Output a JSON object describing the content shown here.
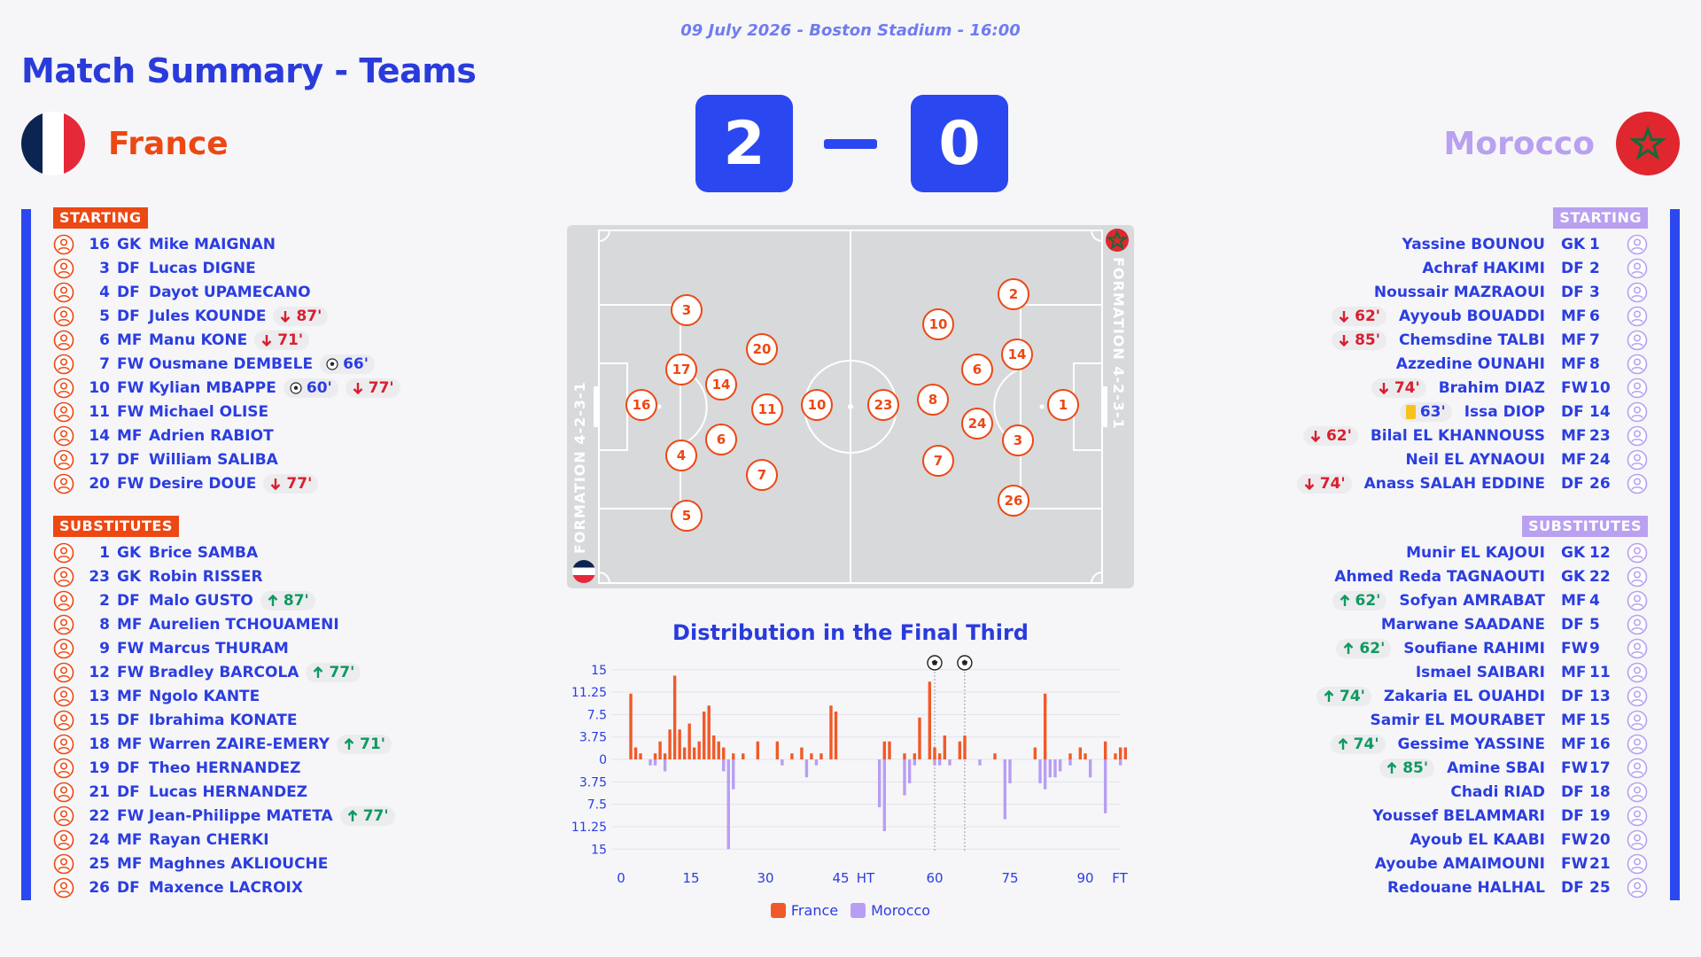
{
  "header": {
    "info": "09 July 2026 - Boston Stadium - 16:00",
    "title": "Match Summary - Teams"
  },
  "teams": {
    "home": {
      "name": "France",
      "score": "2",
      "formation": "FORMATION 4-2-3-1",
      "color": "#ec4814"
    },
    "away": {
      "name": "Morocco",
      "score": "0",
      "formation": "FORMATION 4-2-3-1",
      "color": "#b9a0f0"
    }
  },
  "labels": {
    "starting": "STARTING",
    "substitutes": "SUBSTITUTES"
  },
  "home_starting": [
    {
      "num": "16",
      "pos": "GK",
      "name": "Mike MAIGNAN",
      "events": []
    },
    {
      "num": "3",
      "pos": "DF",
      "name": "Lucas DIGNE",
      "events": []
    },
    {
      "num": "4",
      "pos": "DF",
      "name": "Dayot UPAMECANO",
      "events": []
    },
    {
      "num": "5",
      "pos": "DF",
      "name": "Jules KOUNDE",
      "events": [
        {
          "type": "out",
          "text": "87'"
        }
      ]
    },
    {
      "num": "6",
      "pos": "MF",
      "name": "Manu KONE",
      "events": [
        {
          "type": "out",
          "text": "71'"
        }
      ]
    },
    {
      "num": "7",
      "pos": "FW",
      "name": "Ousmane DEMBELE",
      "events": [
        {
          "type": "goal",
          "text": "66'"
        }
      ]
    },
    {
      "num": "10",
      "pos": "FW",
      "name": "Kylian MBAPPE",
      "events": [
        {
          "type": "goal",
          "text": "60'"
        },
        {
          "type": "out",
          "text": "77'"
        }
      ]
    },
    {
      "num": "11",
      "pos": "FW",
      "name": "Michael OLISE",
      "events": []
    },
    {
      "num": "14",
      "pos": "MF",
      "name": "Adrien RABIOT",
      "events": []
    },
    {
      "num": "17",
      "pos": "DF",
      "name": "William SALIBA",
      "events": []
    },
    {
      "num": "20",
      "pos": "FW",
      "name": "Desire DOUE",
      "events": [
        {
          "type": "out",
          "text": "77'"
        }
      ]
    }
  ],
  "home_subs": [
    {
      "num": "1",
      "pos": "GK",
      "name": "Brice SAMBA",
      "events": []
    },
    {
      "num": "23",
      "pos": "GK",
      "name": "Robin RISSER",
      "events": []
    },
    {
      "num": "2",
      "pos": "DF",
      "name": "Malo GUSTO",
      "events": [
        {
          "type": "in",
          "text": "87'"
        }
      ]
    },
    {
      "num": "8",
      "pos": "MF",
      "name": "Aurelien TCHOUAMENI",
      "events": []
    },
    {
      "num": "9",
      "pos": "FW",
      "name": "Marcus THURAM",
      "events": []
    },
    {
      "num": "12",
      "pos": "FW",
      "name": "Bradley BARCOLA",
      "events": [
        {
          "type": "in",
          "text": "77'"
        }
      ]
    },
    {
      "num": "13",
      "pos": "MF",
      "name": "Ngolo KANTE",
      "events": []
    },
    {
      "num": "15",
      "pos": "DF",
      "name": "Ibrahima KONATE",
      "events": []
    },
    {
      "num": "18",
      "pos": "MF",
      "name": "Warren ZAIRE-EMERY",
      "events": [
        {
          "type": "in",
          "text": "71'"
        }
      ]
    },
    {
      "num": "19",
      "pos": "DF",
      "name": "Theo HERNANDEZ",
      "events": []
    },
    {
      "num": "21",
      "pos": "DF",
      "name": "Lucas HERNANDEZ",
      "events": []
    },
    {
      "num": "22",
      "pos": "FW",
      "name": "Jean-Philippe MATETA",
      "events": [
        {
          "type": "in",
          "text": "77'"
        }
      ]
    },
    {
      "num": "24",
      "pos": "MF",
      "name": "Rayan CHERKI",
      "events": []
    },
    {
      "num": "25",
      "pos": "MF",
      "name": "Maghnes AKLIOUCHE",
      "events": []
    },
    {
      "num": "26",
      "pos": "DF",
      "name": "Maxence LACROIX",
      "events": []
    }
  ],
  "away_starting": [
    {
      "num": "1",
      "pos": "GK",
      "name": "Yassine BOUNOU",
      "events": []
    },
    {
      "num": "2",
      "pos": "DF",
      "name": "Achraf HAKIMI",
      "events": []
    },
    {
      "num": "3",
      "pos": "DF",
      "name": "Noussair MAZRAOUI",
      "events": []
    },
    {
      "num": "6",
      "pos": "MF",
      "name": "Ayyoub BOUADDI",
      "events": [
        {
          "type": "out",
          "text": "62'"
        }
      ]
    },
    {
      "num": "7",
      "pos": "MF",
      "name": "Chemsdine TALBI",
      "events": [
        {
          "type": "out",
          "text": "85'"
        }
      ]
    },
    {
      "num": "8",
      "pos": "MF",
      "name": "Azzedine OUNAHI",
      "events": []
    },
    {
      "num": "10",
      "pos": "FW",
      "name": "Brahim DIAZ",
      "events": [
        {
          "type": "out",
          "text": "74'"
        }
      ]
    },
    {
      "num": "14",
      "pos": "DF",
      "name": "Issa DIOP",
      "events": [
        {
          "type": "card",
          "text": "63'"
        }
      ]
    },
    {
      "num": "23",
      "pos": "MF",
      "name": "Bilal EL KHANNOUSS",
      "events": [
        {
          "type": "out",
          "text": "62'"
        }
      ]
    },
    {
      "num": "24",
      "pos": "MF",
      "name": "Neil EL AYNAOUI",
      "events": []
    },
    {
      "num": "26",
      "pos": "DF",
      "name": "Anass SALAH EDDINE",
      "events": [
        {
          "type": "out",
          "text": "74'"
        }
      ]
    }
  ],
  "away_subs": [
    {
      "num": "12",
      "pos": "GK",
      "name": "Munir EL KAJOUI",
      "events": []
    },
    {
      "num": "22",
      "pos": "GK",
      "name": "Ahmed Reda TAGNAOUTI",
      "events": []
    },
    {
      "num": "4",
      "pos": "MF",
      "name": "Sofyan AMRABAT",
      "events": [
        {
          "type": "in",
          "text": "62'"
        }
      ]
    },
    {
      "num": "5",
      "pos": "DF",
      "name": "Marwane SAADANE",
      "events": []
    },
    {
      "num": "9",
      "pos": "FW",
      "name": "Soufiane RAHIMI",
      "events": [
        {
          "type": "in",
          "text": "62'"
        }
      ]
    },
    {
      "num": "11",
      "pos": "MF",
      "name": "Ismael SAIBARI",
      "events": []
    },
    {
      "num": "13",
      "pos": "DF",
      "name": "Zakaria EL OUAHDI",
      "events": [
        {
          "type": "in",
          "text": "74'"
        }
      ]
    },
    {
      "num": "15",
      "pos": "MF",
      "name": "Samir EL MOURABET",
      "events": []
    },
    {
      "num": "16",
      "pos": "MF",
      "name": "Gessime YASSINE",
      "events": [
        {
          "type": "in",
          "text": "74'"
        }
      ]
    },
    {
      "num": "17",
      "pos": "FW",
      "name": "Amine SBAI",
      "events": [
        {
          "type": "in",
          "text": "85'"
        }
      ]
    },
    {
      "num": "18",
      "pos": "DF",
      "name": "Chadi RIAD",
      "events": []
    },
    {
      "num": "19",
      "pos": "DF",
      "name": "Youssef BELAMMARI",
      "events": []
    },
    {
      "num": "20",
      "pos": "FW",
      "name": "Ayoub EL KAABI",
      "events": []
    },
    {
      "num": "21",
      "pos": "FW",
      "name": "Ayoube AMAIMOUNI",
      "events": []
    },
    {
      "num": "25",
      "pos": "DF",
      "name": "Redouane HALHAL",
      "events": []
    }
  ],
  "pitch_home_numbers": [
    "16",
    "3",
    "17",
    "4",
    "5",
    "20",
    "14",
    "6",
    "11",
    "7",
    "10"
  ],
  "pitch_away_numbers": [
    "23",
    "10",
    "8",
    "7",
    "6",
    "24",
    "2",
    "14",
    "3",
    "26",
    "1"
  ],
  "chart_data": {
    "type": "bar",
    "title": "Distribution in the Final Third",
    "x_tick_labels": [
      "0",
      "15",
      "30",
      "45",
      "HT",
      "60",
      "75",
      "90",
      "FT"
    ],
    "y_tick_labels": [
      "15",
      "11.25",
      "7.5",
      "3.75",
      "0",
      "3.75",
      "7.5",
      "11.25",
      "15"
    ],
    "ylim": [
      -15,
      15
    ],
    "goal_minutes": [
      60,
      66
    ],
    "legend": [
      "France",
      "Morocco"
    ],
    "colors": {
      "France": "#f05a28",
      "Morocco": "#b89ef2"
    },
    "series": [
      {
        "name": "France",
        "values": [
          {
            "minute": 2,
            "value": 11
          },
          {
            "minute": 3,
            "value": 2
          },
          {
            "minute": 4,
            "value": 1
          },
          {
            "minute": 7,
            "value": 1
          },
          {
            "minute": 8,
            "value": 3
          },
          {
            "minute": 9,
            "value": 1
          },
          {
            "minute": 10,
            "value": 5
          },
          {
            "minute": 11,
            "value": 14
          },
          {
            "minute": 12,
            "value": 5
          },
          {
            "minute": 13,
            "value": 2
          },
          {
            "minute": 14,
            "value": 6
          },
          {
            "minute": 15,
            "value": 2
          },
          {
            "minute": 16,
            "value": 3
          },
          {
            "minute": 17,
            "value": 8
          },
          {
            "minute": 18,
            "value": 9
          },
          {
            "minute": 19,
            "value": 4
          },
          {
            "minute": 20,
            "value": 3
          },
          {
            "minute": 21,
            "value": 2
          },
          {
            "minute": 23,
            "value": 1
          },
          {
            "minute": 25,
            "value": 1
          },
          {
            "minute": 28,
            "value": 3
          },
          {
            "minute": 32,
            "value": 3
          },
          {
            "minute": 35,
            "value": 1
          },
          {
            "minute": 37,
            "value": 2
          },
          {
            "minute": 39,
            "value": 1
          },
          {
            "minute": 41,
            "value": 1
          },
          {
            "minute": 43,
            "value": 9
          },
          {
            "minute": 44,
            "value": 8
          },
          {
            "minute": 47,
            "value": 2
          },
          {
            "minute": 50,
            "value": 3
          },
          {
            "minute": 51,
            "value": 3
          },
          {
            "minute": 54,
            "value": 1
          },
          {
            "minute": 56,
            "value": 1
          },
          {
            "minute": 57,
            "value": 7
          },
          {
            "minute": 59,
            "value": 13
          },
          {
            "minute": 60,
            "value": 2
          },
          {
            "minute": 61,
            "value": 1
          },
          {
            "minute": 62,
            "value": 4
          },
          {
            "minute": 65,
            "value": 3
          },
          {
            "minute": 66,
            "value": 4
          },
          {
            "minute": 72,
            "value": 1
          },
          {
            "minute": 80,
            "value": 2
          },
          {
            "minute": 82,
            "value": 11
          },
          {
            "minute": 87,
            "value": 1
          },
          {
            "minute": 89,
            "value": 2
          },
          {
            "minute": 90,
            "value": 1
          },
          {
            "minute": 94,
            "value": 3
          },
          {
            "minute": 96,
            "value": 1
          },
          {
            "minute": 97,
            "value": 2
          },
          {
            "minute": 98,
            "value": 2
          }
        ]
      },
      {
        "name": "Morocco",
        "values": [
          {
            "minute": 6,
            "value": -1
          },
          {
            "minute": 7,
            "value": -1
          },
          {
            "minute": 9,
            "value": -2
          },
          {
            "minute": 21,
            "value": -2
          },
          {
            "minute": 22,
            "value": -15
          },
          {
            "minute": 23,
            "value": -5
          },
          {
            "minute": 33,
            "value": -1
          },
          {
            "minute": 38,
            "value": -3
          },
          {
            "minute": 40,
            "value": -1
          },
          {
            "minute": 47,
            "value": -12
          },
          {
            "minute": 49,
            "value": -8
          },
          {
            "minute": 54,
            "value": -6
          },
          {
            "minute": 55,
            "value": -4
          },
          {
            "minute": 56,
            "value": -1
          },
          {
            "minute": 60,
            "value": -1
          },
          {
            "minute": 61,
            "value": -1
          },
          {
            "minute": 63,
            "value": -1
          },
          {
            "minute": 69,
            "value": -1
          },
          {
            "minute": 74,
            "value": -10
          },
          {
            "minute": 75,
            "value": -4
          },
          {
            "minute": 81,
            "value": -4
          },
          {
            "minute": 82,
            "value": -5
          },
          {
            "minute": 83,
            "value": -3
          },
          {
            "minute": 84,
            "value": -3
          },
          {
            "minute": 85,
            "value": -2
          },
          {
            "minute": 87,
            "value": -1
          },
          {
            "minute": 91,
            "value": -3
          },
          {
            "minute": 94,
            "value": -9
          },
          {
            "minute": 97,
            "value": -1
          }
        ]
      }
    ]
  }
}
